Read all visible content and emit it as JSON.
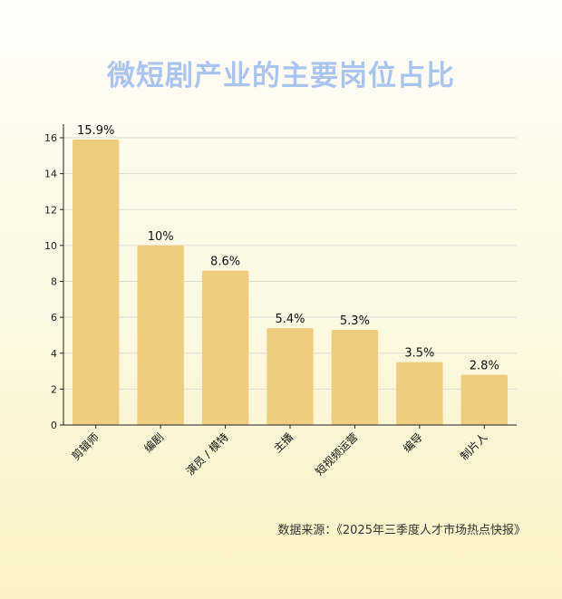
{
  "title": "微短剧产业的主要岗位占比",
  "source": "数据来源：《2025年三季度人才市场热点快报》",
  "colors": {
    "bar": "#efcd7e",
    "grid": "#dedbd4",
    "axis": "#222222",
    "title": "#a9c4ee"
  },
  "chart_data": {
    "type": "bar",
    "title": "微短剧产业的主要岗位占比",
    "xlabel": "",
    "ylabel": "",
    "categories": [
      "剪辑师",
      "编剧",
      "演员 / 模特",
      "主播",
      "短视频运营",
      "编导",
      "制片人"
    ],
    "values": [
      15.9,
      10,
      8.6,
      5.4,
      5.3,
      3.5,
      2.8
    ],
    "data_labels": [
      "15.9%",
      "10%",
      "8.6%",
      "5.4%",
      "5.3%",
      "3.5%",
      "2.8%"
    ],
    "ylim": [
      0,
      17
    ],
    "yticks": [
      0,
      2,
      4,
      6,
      8,
      10,
      12,
      14,
      16
    ],
    "grid": true,
    "legend": "none"
  }
}
